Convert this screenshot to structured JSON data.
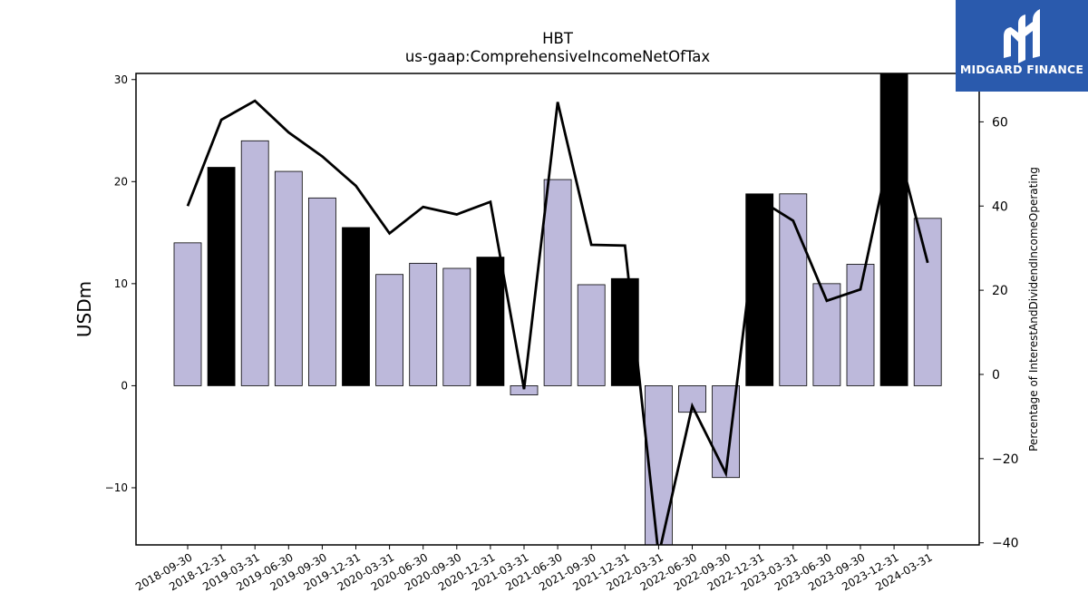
{
  "chart_data": {
    "type": "bar",
    "title": "HBT",
    "subtitle": "us-gaap:ComprehensiveIncomeNetOfTax",
    "ylabel": "USDm",
    "y2label": "Percentage of InterestAndDividendIncomeOperating",
    "ylim": [
      -15.6,
      30.6
    ],
    "y2lim": [
      -40.5,
      71.5
    ],
    "yticks": [
      -10,
      0,
      10,
      20,
      30
    ],
    "y2ticks": [
      -40,
      -20,
      0,
      20,
      40,
      60
    ],
    "categories": [
      "2018-09-30",
      "2018-12-31",
      "2019-03-31",
      "2019-06-30",
      "2019-09-30",
      "2019-12-31",
      "2020-03-31",
      "2020-06-30",
      "2020-09-30",
      "2020-12-31",
      "2021-03-31",
      "2021-06-30",
      "2021-09-30",
      "2021-12-31",
      "2022-03-31",
      "2022-06-30",
      "2022-09-30",
      "2022-12-31",
      "2023-03-31",
      "2023-06-30",
      "2023-09-30",
      "2023-12-31",
      "2024-03-31"
    ],
    "series": [
      {
        "type": "bar",
        "values": [
          14.0,
          21.4,
          24.0,
          21.0,
          18.4,
          15.5,
          10.9,
          12.0,
          11.5,
          12.6,
          -0.9,
          20.2,
          9.9,
          10.5,
          -15.6,
          -2.6,
          -9.0,
          18.8,
          18.8,
          10.0,
          11.9,
          30.6,
          16.4
        ],
        "highlight": [
          false,
          true,
          false,
          false,
          false,
          true,
          false,
          false,
          false,
          true,
          false,
          false,
          false,
          true,
          false,
          false,
          false,
          true,
          false,
          false,
          false,
          true,
          false
        ]
      },
      {
        "type": "line",
        "axis": "right",
        "values": [
          40.0,
          60.5,
          65.0,
          57.5,
          51.8,
          44.8,
          33.5,
          39.8,
          38.0,
          41.0,
          -3.5,
          64.7,
          30.8,
          30.6,
          -43.0,
          -7.5,
          -23.5,
          41.5,
          36.5,
          17.5,
          20.2,
          57.5,
          26.5
        ]
      }
    ],
    "colors": {
      "bar": "#bdb9db",
      "highlight_bar": "#000000",
      "line": "#000000"
    }
  },
  "logo": {
    "text": "MIDGARD FINANCE",
    "background": "#2a5aad"
  }
}
